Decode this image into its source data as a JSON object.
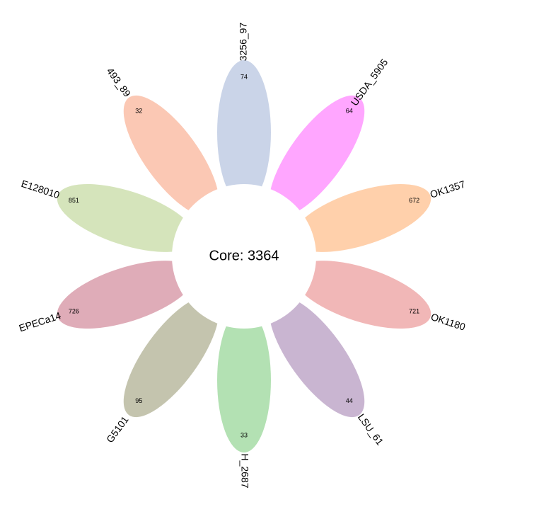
{
  "core_label": "Core: 3364",
  "petals": [
    {
      "name": "3256_97",
      "count": "74",
      "color": "#9fb0d6"
    },
    {
      "name": "USDA_5905",
      "count": "64",
      "color": "#ff5cff"
    },
    {
      "name": "OK1357",
      "count": "672",
      "color": "#ffaa66"
    },
    {
      "name": "OK1180",
      "count": "721",
      "color": "#e57c7c"
    },
    {
      "name": "LSU_61",
      "count": "44",
      "color": "#9c78ac"
    },
    {
      "name": "H_2687",
      "count": "33",
      "color": "#74c874"
    },
    {
      "name": "G5101",
      "count": "95",
      "color": "#93936b"
    },
    {
      "name": "EPECa14",
      "count": "726",
      "color": "#c4687d"
    },
    {
      "name": "E128010",
      "count": "851",
      "color": "#b2cd84"
    },
    {
      "name": "493_89",
      "count": "32",
      "color": "#f79b76"
    }
  ]
}
